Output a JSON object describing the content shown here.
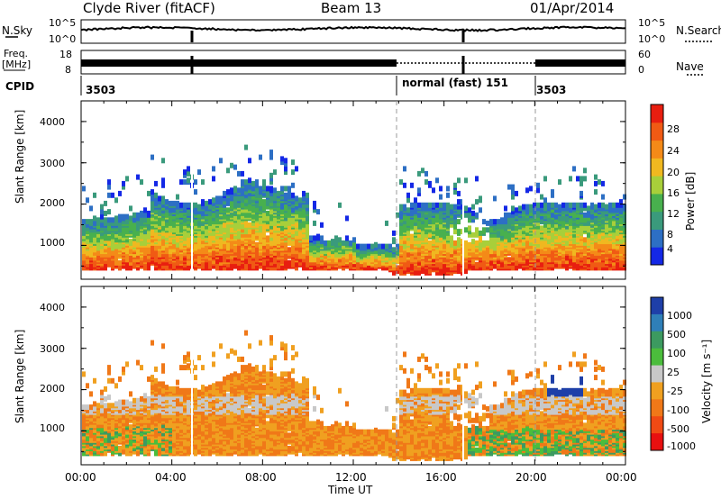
{
  "header": {
    "station": "Clyde River (fitACF)",
    "beam": "Beam 13",
    "date": "01/Apr/2014"
  },
  "noise_panel": {
    "left_label": "N.Sky",
    "right_label": "N.Search",
    "left_ticks": [
      "10^5",
      "10^0"
    ],
    "right_ticks": [
      "10^5",
      "10^0"
    ]
  },
  "freq_panel": {
    "left_label": "Freq.",
    "left_unit": "[MHz]",
    "right_label": "Nave",
    "left_ticks": [
      "18",
      "8"
    ],
    "right_ticks": [
      "60",
      "0"
    ]
  },
  "cpid_panel": {
    "label": "CPID",
    "segments": [
      {
        "text": "3503",
        "start_hour": 0
      },
      {
        "text": "normal (fast) 151",
        "start_hour": 14
      },
      {
        "text": "3503",
        "start_hour": 20
      }
    ]
  },
  "colors": {
    "power_scale": [
      "#1428e6",
      "#2d6fc4",
      "#3a9a7c",
      "#48b04e",
      "#a8cf3a",
      "#f0b820",
      "#f48a18",
      "#f05a14",
      "#e81e10"
    ],
    "velocity_scale": [
      "#1e3fa8",
      "#2f7fb8",
      "#3c9a60",
      "#4bbd3c",
      "#c8c8c8",
      "#f0a020",
      "#f07818",
      "#f04a14",
      "#e81010"
    ]
  },
  "chart_data": [
    {
      "type": "heatmap",
      "title": "",
      "ylabel": "Slant Range [km]",
      "xlabel": "",
      "x_range_hours": [
        0,
        24
      ],
      "ylim": [
        180,
        4500
      ],
      "y_ticks": [
        "1000",
        "2000",
        "3000",
        "4000"
      ],
      "colorbar": {
        "label": "Power [dB]",
        "ticks": [
          "4",
          "8",
          "12",
          "16",
          "20",
          "24",
          "28"
        ],
        "range": [
          0,
          30
        ]
      }
    },
    {
      "type": "heatmap",
      "title": "",
      "ylabel": "Slant Range [km]",
      "xlabel": "Time UT",
      "x_range_hours": [
        0,
        24
      ],
      "x_ticks": [
        "00:00",
        "04:00",
        "08:00",
        "12:00",
        "16:00",
        "20:00",
        "00:00"
      ],
      "ylim": [
        180,
        4500
      ],
      "y_ticks": [
        "1000",
        "2000",
        "3000",
        "4000"
      ],
      "colorbar": {
        "label": "Velocity [m s⁻¹]",
        "ticks": [
          "1000",
          "500",
          "100",
          "25",
          "-25",
          "-100",
          "-500",
          "-1000"
        ]
      }
    }
  ]
}
